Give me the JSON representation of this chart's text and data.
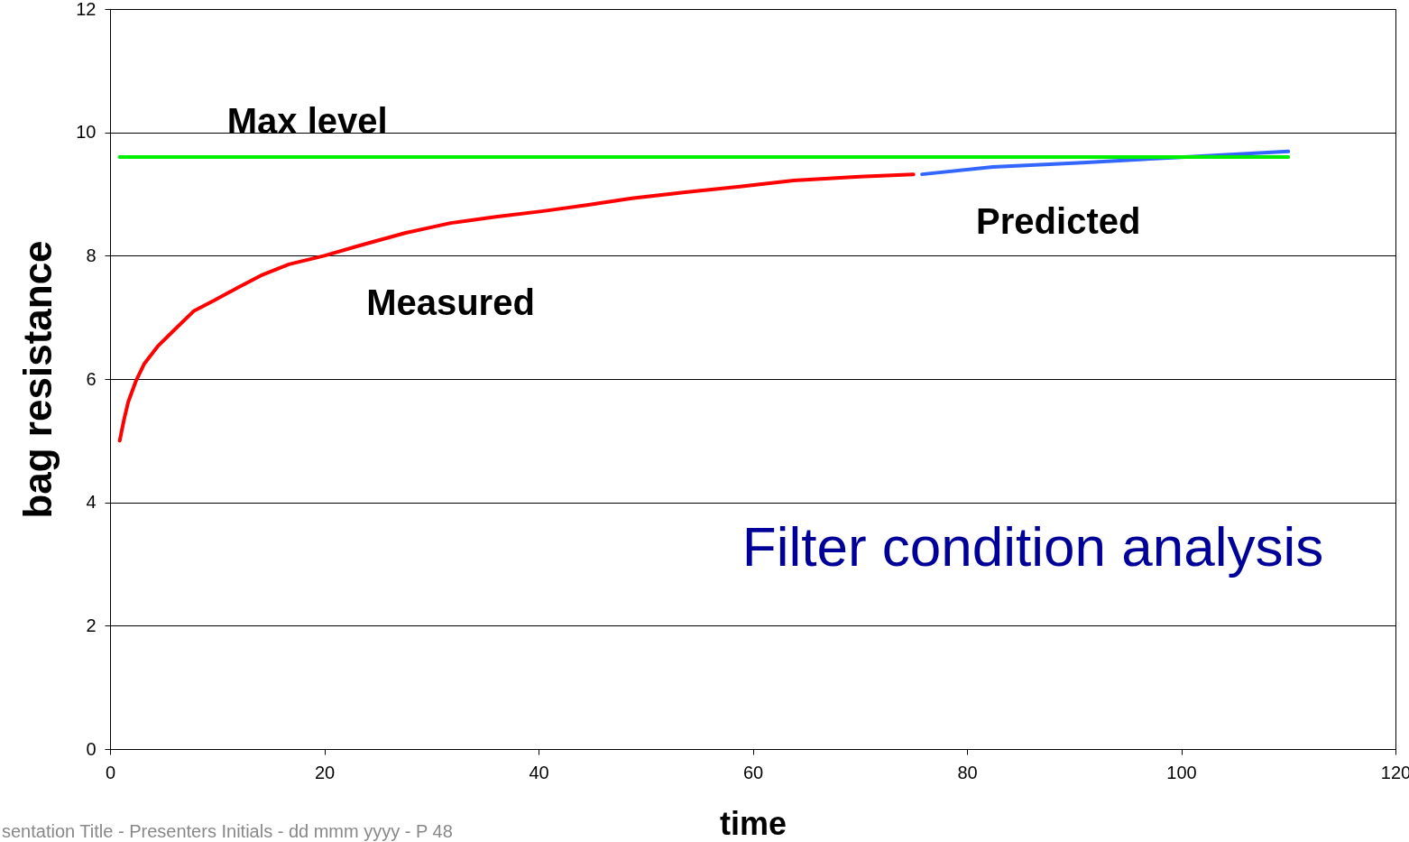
{
  "chart_data": {
    "type": "line",
    "title": "Filter condition analysis",
    "xlabel": "time",
    "ylabel": "bag resistance",
    "annotations": [
      "sentation Title - Presenters Initials - dd mmm yyyy - P 48"
    ],
    "xlim": [
      0,
      120
    ],
    "xticks": [
      0,
      20,
      40,
      60,
      80,
      100,
      120
    ],
    "ylim": [
      0,
      12
    ],
    "yticks": [
      0,
      2,
      4,
      6,
      8,
      10,
      12
    ],
    "grid": "y",
    "legend": false,
    "marker": "none",
    "line_style": "solid",
    "series": [
      {
        "name": "Measured",
        "color": "#ff0000",
        "x": [
          0.9,
          1.3,
          1.7,
          2.4,
          3.2,
          4.5,
          6.2,
          7.8,
          9.9,
          12,
          14.1,
          16.7,
          20,
          23.4,
          27.6,
          31.8,
          36,
          40.3,
          44.5,
          48.7,
          53.7,
          58.8,
          63.8,
          70,
          75
        ],
        "values": [
          5.0,
          5.34,
          5.63,
          5.96,
          6.25,
          6.54,
          6.83,
          7.1,
          7.29,
          7.49,
          7.68,
          7.86,
          8.0,
          8.17,
          8.37,
          8.53,
          8.63,
          8.72,
          8.82,
          8.93,
          9.03,
          9.12,
          9.22,
          9.28,
          9.32
        ]
      },
      {
        "name": "Predicted",
        "color": "#3366ff",
        "x": [
          75.8,
          82.4,
          90.8,
          99.2,
          110
        ],
        "values": [
          9.32,
          9.44,
          9.51,
          9.59,
          9.69
        ]
      },
      {
        "name": "Max level",
        "color": "#00ee00",
        "x": [
          0.9,
          110
        ],
        "values": [
          9.6,
          9.6
        ]
      }
    ]
  }
}
